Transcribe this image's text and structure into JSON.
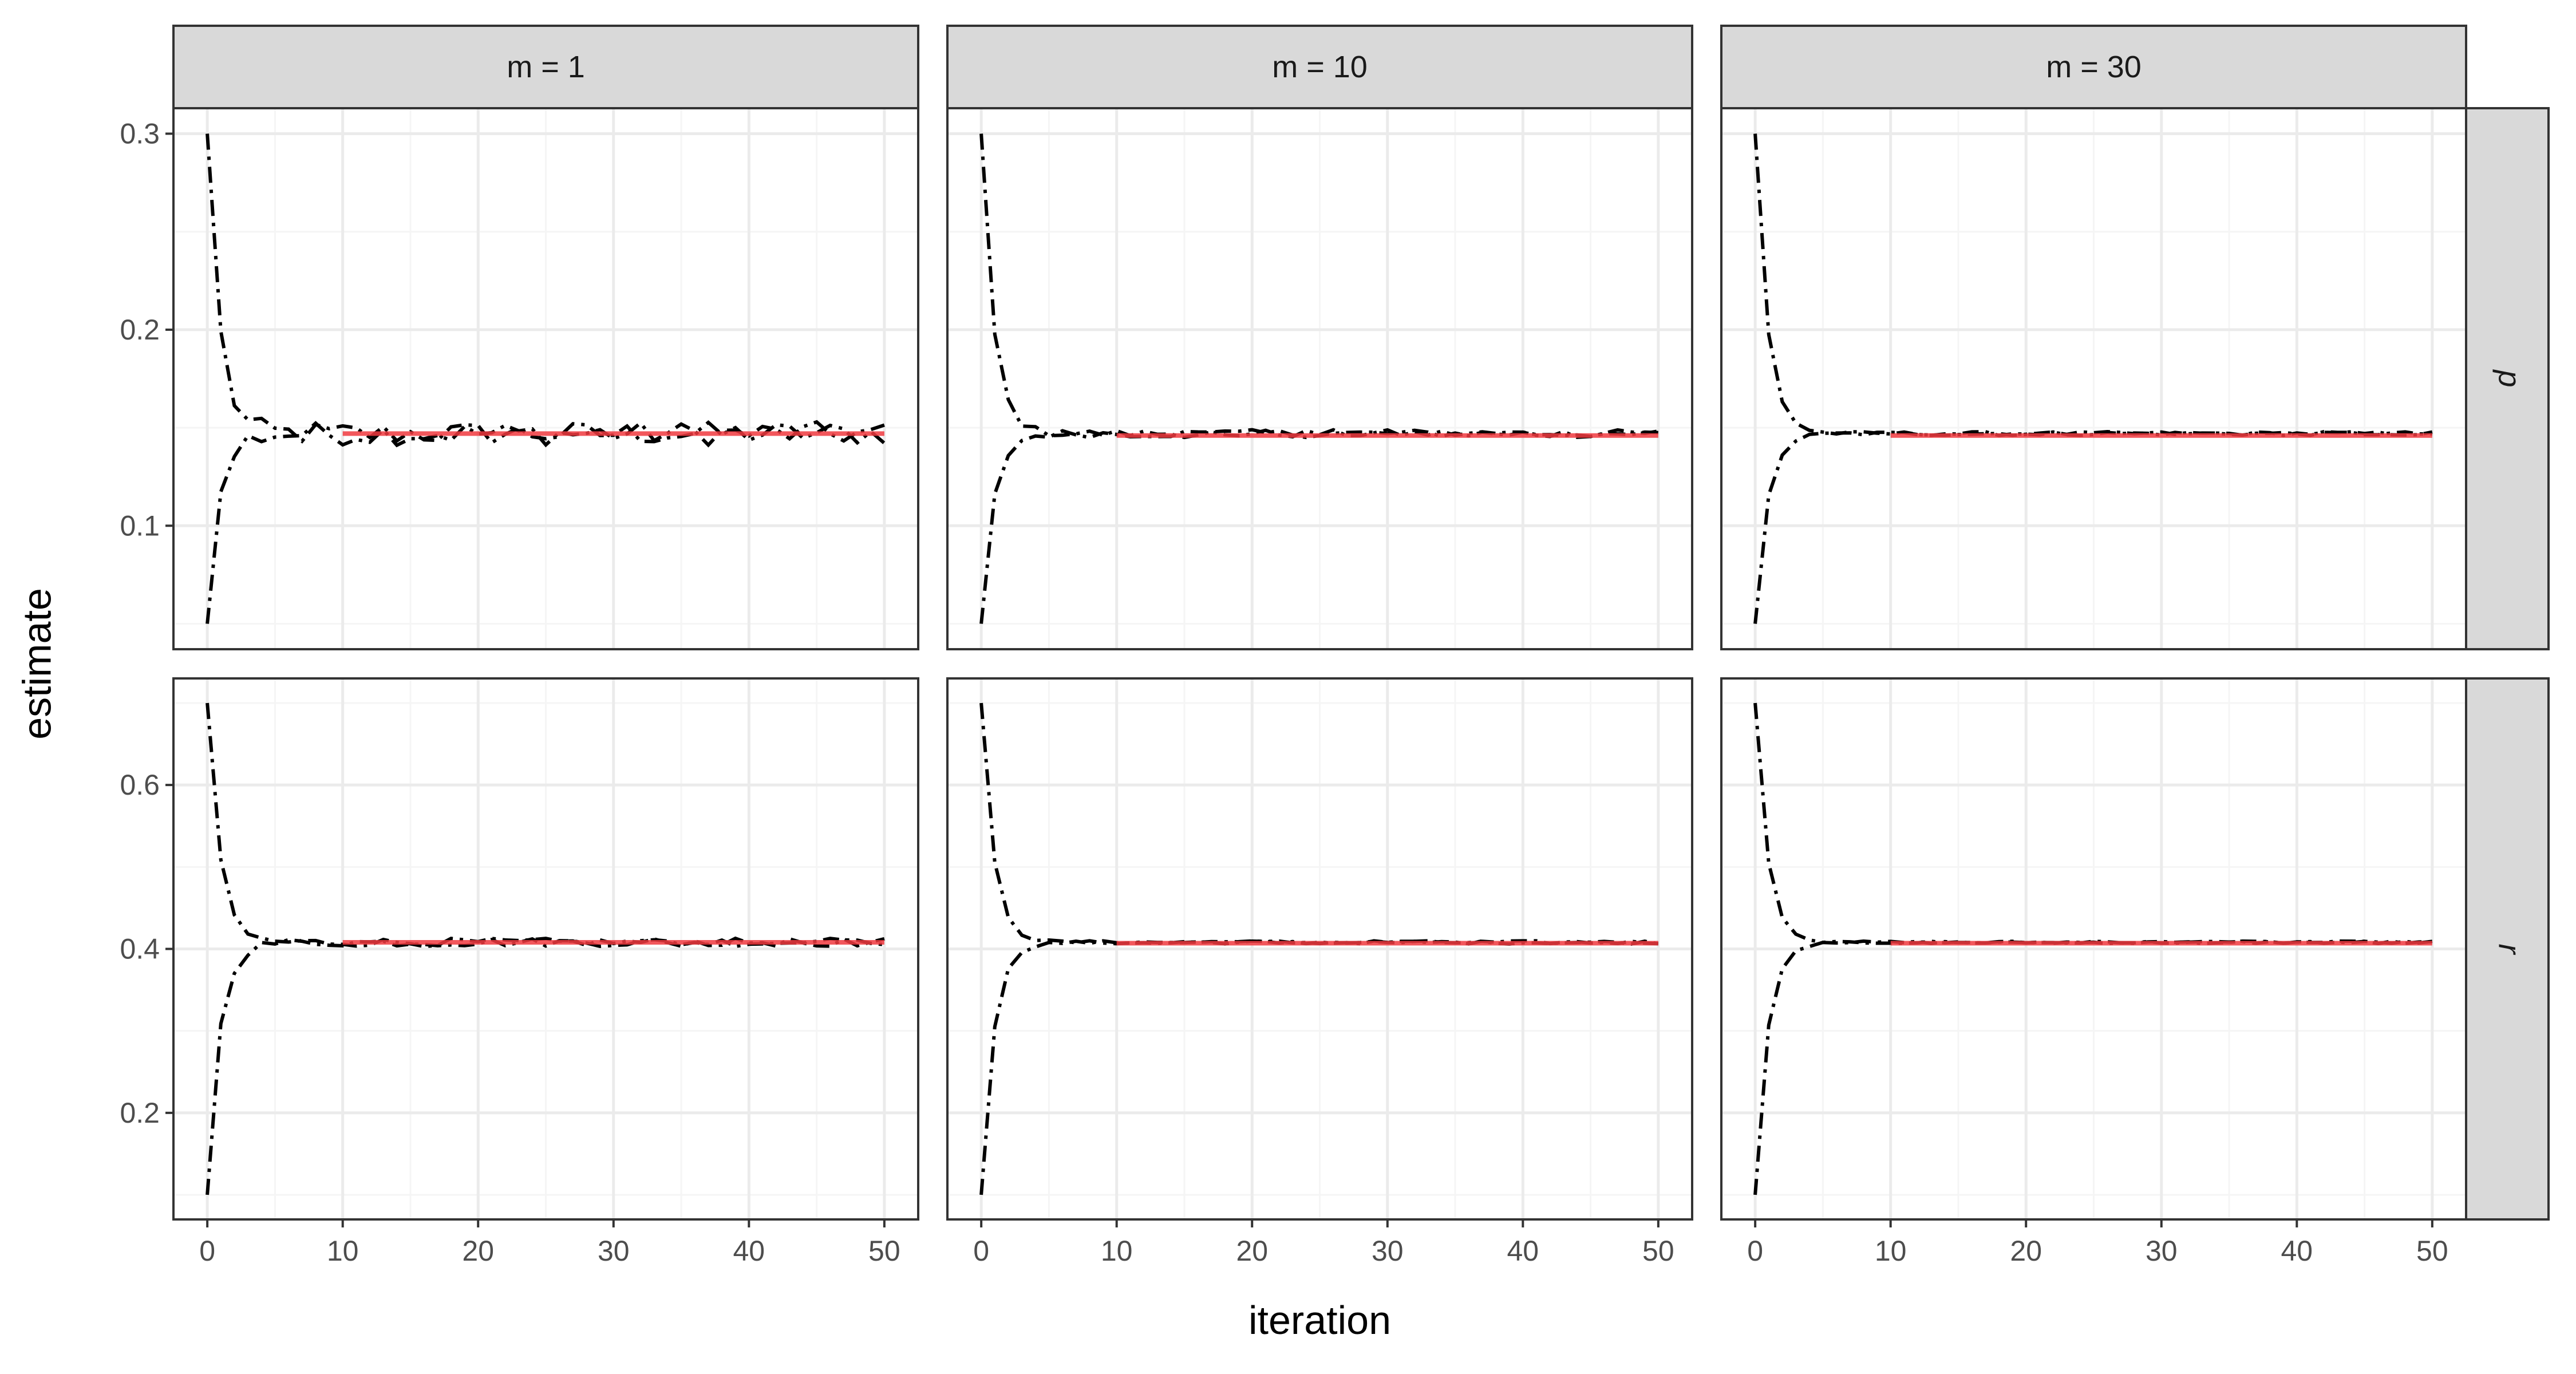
{
  "chart_data": {
    "type": "line",
    "facet_columns": [
      "m = 1",
      "m = 10",
      "m = 30"
    ],
    "facet_rows": [
      "p",
      "r"
    ],
    "xlabel": "iteration",
    "ylabel": "estimate",
    "xlim": [
      -2.5,
      52.5
    ],
    "xticks": [
      0,
      10,
      20,
      30,
      40,
      50
    ],
    "rows": [
      {
        "strip": "p",
        "ylim": [
          0.037,
          0.313
        ],
        "yticks": [
          0.1,
          0.2,
          0.3
        ],
        "ytick_labels": [
          "0.1",
          "0.2",
          "0.3"
        ],
        "start_high": 0.3,
        "start_low": 0.05,
        "converged": 0.147
      },
      {
        "strip": "r",
        "ylim": [
          0.07,
          0.73
        ],
        "yticks": [
          0.2,
          0.4,
          0.6
        ],
        "ytick_labels": [
          "0.2",
          "0.4",
          "0.6"
        ],
        "start_high": 0.7,
        "start_low": 0.1,
        "converged": 0.408
      }
    ],
    "panels": [
      {
        "column": "m = 1",
        "row": "p",
        "noise": 0.006,
        "red_from": 10,
        "red_to": 50,
        "red_value": 0.147
      },
      {
        "column": "m = 10",
        "row": "p",
        "noise": 0.002,
        "red_from": 10,
        "red_to": 50,
        "red_value": 0.146
      },
      {
        "column": "m = 30",
        "row": "p",
        "noise": 0.001,
        "red_from": 10,
        "red_to": 50,
        "red_value": 0.146
      },
      {
        "column": "m = 1",
        "row": "r",
        "noise": 0.005,
        "red_from": 10,
        "red_to": 50,
        "red_value": 0.408
      },
      {
        "column": "m = 10",
        "row": "r",
        "noise": 0.002,
        "red_from": 10,
        "red_to": 50,
        "red_value": 0.407
      },
      {
        "column": "m = 30",
        "row": "r",
        "noise": 0.0015,
        "red_from": 10,
        "red_to": 50,
        "red_value": 0.407
      }
    ],
    "series": [
      {
        "style": "dot-dash black",
        "description": "chain started high"
      },
      {
        "style": "dot-dash black",
        "description": "chain started low"
      },
      {
        "style": "solid red",
        "description": "running mean after burn-in"
      }
    ],
    "colors": {
      "strip_fill": "#d9d9d9",
      "panel_border": "#333333",
      "grid_major": "#ebebeb",
      "grid_minor": "#f5f5f5",
      "trace": "#000000",
      "mean_line": "#f0393f"
    },
    "legend": "none",
    "grid": true
  }
}
